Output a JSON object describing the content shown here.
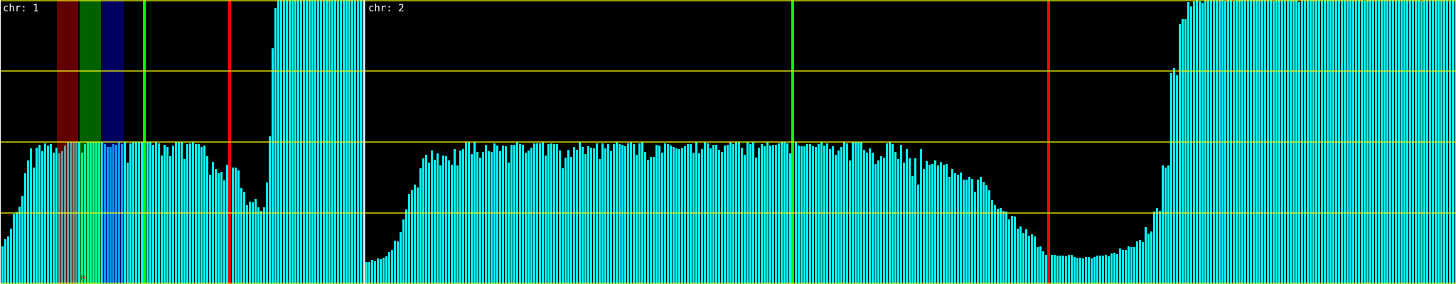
{
  "chart_data": {
    "type": "bar",
    "ylim": [
      0,
      4
    ],
    "grid": true,
    "gridlines_y": [
      0,
      1,
      2,
      3,
      4
    ],
    "colors": {
      "background": "#000000",
      "bar": "#00ffff",
      "grid": "#ffff00",
      "separator": "#ffffff",
      "label": "#ffffff"
    },
    "panels": [
      {
        "label": "chr: 1",
        "values": [
          0.53,
          0.63,
          0.67,
          0.78,
          0.99,
          1.01,
          1.09,
          1.24,
          1.56,
          1.74,
          1.91,
          1.64,
          1.92,
          1.96,
          1.87,
          1.98,
          1.95,
          1.97,
          1.85,
          1.92,
          1.84,
          1.87,
          1.95,
          2.0,
          2.0,
          2.0,
          2.0,
          2.0,
          1.85,
          1.97,
          2.0,
          2.0,
          2.0,
          2.0,
          2.0,
          2.0,
          1.97,
          1.93,
          1.93,
          1.97,
          1.96,
          2.0,
          1.97,
          2.0,
          1.71,
          1.98,
          2.0,
          2.0,
          2.0,
          2.0,
          2.0,
          2.0,
          2.0,
          1.96,
          2.0,
          1.98,
          1.81,
          1.96,
          1.93,
          1.8,
          1.95,
          2.0,
          2.0,
          2.0,
          1.76,
          1.97,
          1.98,
          2.0,
          1.97,
          1.97,
          1.93,
          1.95,
          1.8,
          1.54,
          1.72,
          1.62,
          1.56,
          1.58,
          1.46,
          1.68,
          1.65,
          1.64,
          1.64,
          1.6,
          1.35,
          1.3,
          1.11,
          1.16,
          1.15,
          1.2,
          1.08,
          1.03,
          1.08,
          1.43,
          2.08,
          3.32,
          3.89,
          4.0,
          4.0,
          4.0,
          4.0,
          4.0,
          4.0,
          4.0,
          4.0,
          4.0,
          4.0,
          4.0,
          4.0,
          4.0,
          4.0,
          4.0,
          4.0,
          4.0,
          4.0,
          4.0,
          4.0,
          4.0,
          4.0,
          4.0,
          4.0,
          4.0,
          4.0,
          4.0,
          4.0,
          4.0,
          4.0,
          4.0
        ],
        "bands": [
          {
            "from_bin": 19.5,
            "to_bin": 26.75,
            "color": "#ff0000"
          },
          {
            "from_bin": 27.5,
            "to_bin": 34.75,
            "color": "#00ff00"
          },
          {
            "from_bin": 35.5,
            "to_bin": 42.75,
            "color": "#0000ff"
          }
        ],
        "markers": [
          {
            "bin": 49.75,
            "color": "#00ff00"
          },
          {
            "bin": 79.75,
            "color": "#ff0000"
          }
        ],
        "annotations": [
          {
            "text": "0",
            "bin": 27.75,
            "value": 0.03,
            "color": "#ff0000"
          }
        ]
      },
      {
        "label": "chr: 2",
        "values": [
          0.31,
          0.31,
          0.34,
          0.32,
          0.36,
          0.35,
          0.37,
          0.39,
          0.45,
          0.48,
          0.61,
          0.6,
          0.73,
          0.91,
          1.05,
          1.27,
          1.32,
          1.4,
          1.36,
          1.63,
          1.77,
          1.82,
          1.71,
          1.88,
          1.75,
          1.84,
          1.67,
          1.81,
          1.8,
          1.74,
          1.68,
          1.9,
          1.67,
          1.88,
          1.9,
          2.0,
          2.0,
          1.83,
          2.0,
          1.86,
          1.78,
          1.86,
          1.96,
          1.87,
          1.86,
          1.98,
          1.95,
          1.87,
          1.95,
          1.94,
          1.71,
          1.96,
          1.96,
          2.0,
          1.97,
          1.96,
          1.85,
          1.88,
          1.92,
          1.98,
          1.98,
          1.98,
          2.0,
          1.81,
          1.97,
          1.98,
          1.97,
          1.97,
          1.88,
          1.63,
          1.78,
          1.89,
          1.79,
          1.93,
          1.89,
          2.0,
          1.93,
          1.83,
          1.94,
          1.92,
          1.91,
          1.98,
          1.76,
          1.98,
          1.91,
          1.97,
          1.87,
          1.97,
          2.0,
          1.97,
          1.96,
          1.94,
          1.98,
          2.0,
          1.97,
          1.82,
          1.98,
          2.0,
          1.86,
          1.75,
          1.79,
          1.79,
          1.96,
          1.95,
          1.85,
          1.98,
          1.97,
          1.95,
          1.93,
          1.91,
          1.9,
          1.92,
          1.94,
          1.97,
          1.97,
          1.85,
          2.0,
          1.84,
          1.9,
          2.0,
          1.98,
          1.91,
          1.96,
          1.96,
          1.89,
          1.86,
          1.95,
          1.96,
          2.0,
          1.97,
          2.0,
          2.0,
          1.92,
          1.82,
          2.0,
          1.97,
          2.0,
          1.78,
          1.92,
          1.97,
          1.94,
          2.0,
          1.95,
          1.96,
          1.96,
          1.98,
          2.0,
          2.0,
          1.98,
          1.84,
          2.0,
          2.0,
          1.95,
          1.94,
          1.94,
          1.97,
          1.97,
          1.94,
          1.93,
          1.97,
          2.0,
          1.95,
          1.98,
          1.9,
          1.94,
          1.82,
          1.88,
          1.93,
          2.0,
          1.98,
          1.74,
          2.0,
          2.0,
          2.0,
          2.0,
          1.89,
          1.85,
          1.91,
          1.85,
          1.69,
          1.74,
          1.8,
          1.78,
          1.98,
          2.0,
          1.97,
          1.86,
          1.76,
          1.96,
          1.71,
          1.9,
          1.77,
          1.52,
          1.77,
          1.4,
          1.9,
          1.62,
          1.73,
          1.68,
          1.69,
          1.74,
          1.67,
          1.72,
          1.68,
          1.69,
          1.51,
          1.62,
          1.56,
          1.54,
          1.57,
          1.47,
          1.47,
          1.51,
          1.48,
          1.3,
          1.47,
          1.51,
          1.44,
          1.39,
          1.32,
          1.18,
          1.11,
          1.06,
          1.07,
          1.03,
          1.02,
          0.91,
          0.96,
          0.95,
          0.78,
          0.81,
          0.72,
          0.77,
          0.68,
          0.7,
          0.67,
          0.52,
          0.53,
          0.46,
          0.41,
          0.41,
          0.41,
          0.41,
          0.4,
          0.4,
          0.4,
          0.39,
          0.41,
          0.41,
          0.38,
          0.37,
          0.37,
          0.36,
          0.38,
          0.38,
          0.36,
          0.38,
          0.4,
          0.4,
          0.4,
          0.41,
          0.39,
          0.43,
          0.44,
          0.42,
          0.5,
          0.48,
          0.48,
          0.53,
          0.52,
          0.52,
          0.6,
          0.62,
          0.59,
          0.8,
          0.71,
          0.74,
          1.02,
          1.07,
          1.03,
          1.67,
          1.64,
          1.67,
          2.97,
          3.04,
          2.94,
          3.66,
          3.73,
          3.73,
          3.97,
          3.91,
          3.98,
          4.0,
          3.98,
          3.96,
          4.0,
          4.0,
          4.0,
          4.0,
          4.0,
          4.0,
          4.0,
          3.99,
          4.0,
          4.0,
          3.99,
          4.0,
          4.0,
          4.0,
          4.0,
          4.0,
          4.0,
          4.0,
          4.0,
          4.0,
          4.0,
          4.0,
          4.0,
          4.0,
          3.99,
          4.0,
          4.0,
          4.0,
          4.0,
          4.0,
          4.0,
          4.0,
          4.0,
          3.97,
          4.0,
          4.0,
          4.0,
          4.0,
          4.0,
          4.0,
          4.0,
          4.0,
          4.0,
          4.0,
          4.0,
          4.0,
          4.0,
          4.0,
          4.0,
          4.0,
          4.0,
          4.0,
          4.0,
          4.0,
          4.0,
          4.0,
          3.99,
          4.0,
          4.0,
          4.0,
          4.0,
          4.0,
          4.0,
          4.0,
          4.0,
          4.0,
          4.0,
          4.0,
          4.0,
          4.0,
          4.0,
          4.0,
          4.0,
          4.0,
          4.0,
          4.0,
          3.99,
          4.0,
          4.0,
          4.0,
          4.0,
          4.0,
          4.0,
          4.0,
          4.0,
          4.0,
          4.0,
          4.0,
          4.0
        ],
        "bands": [],
        "markers": [
          {
            "bin": 149.75,
            "color": "#00ff00"
          },
          {
            "bin": 239.75,
            "color": "#ff0000"
          }
        ],
        "annotations": []
      }
    ]
  }
}
